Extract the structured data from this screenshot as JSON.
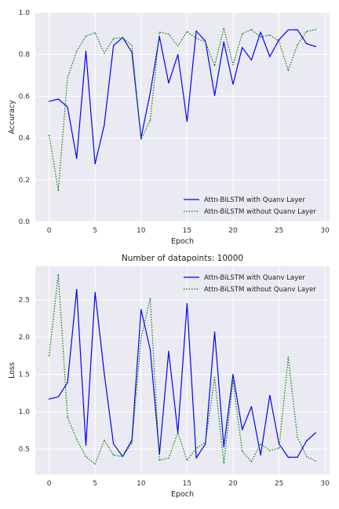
{
  "chart_data": [
    {
      "type": "line",
      "title": "",
      "xlabel": "Epoch",
      "ylabel": "Accuracy",
      "xlim": [
        -1.5,
        30.5
      ],
      "ylim": [
        0.0,
        1.0
      ],
      "xticks": [
        0,
        5,
        10,
        15,
        20,
        25,
        30
      ],
      "yticks": [
        0.0,
        0.2,
        0.4,
        0.6,
        0.8,
        1.0
      ],
      "grid": true,
      "legend_position": "lower-right",
      "x": [
        0,
        1,
        2,
        3,
        4,
        5,
        6,
        7,
        8,
        9,
        10,
        11,
        12,
        13,
        14,
        15,
        16,
        17,
        18,
        19,
        20,
        21,
        22,
        23,
        24,
        25,
        26,
        27,
        28,
        29
      ],
      "series": [
        {
          "name": "Attn-BiLSTM with Quanv Layer",
          "color": "#0000ff",
          "style": "solid",
          "values": [
            0.575,
            0.586,
            0.548,
            0.302,
            0.815,
            0.276,
            0.462,
            0.842,
            0.881,
            0.81,
            0.401,
            0.617,
            0.885,
            0.663,
            0.799,
            0.479,
            0.912,
            0.863,
            0.603,
            0.859,
            0.657,
            0.833,
            0.773,
            0.906,
            0.789,
            0.87,
            0.917,
            0.918,
            0.851,
            0.837
          ]
        },
        {
          "name": "Attn-BiLSTM without Quanv Layer",
          "color": "#008000",
          "style": "dotted",
          "values": [
            0.413,
            0.149,
            0.689,
            0.815,
            0.887,
            0.903,
            0.806,
            0.876,
            0.88,
            0.842,
            0.393,
            0.485,
            0.906,
            0.897,
            0.84,
            0.909,
            0.877,
            0.859,
            0.746,
            0.925,
            0.75,
            0.899,
            0.918,
            0.883,
            0.893,
            0.863,
            0.723,
            0.846,
            0.91,
            0.919
          ]
        }
      ]
    },
    {
      "type": "line",
      "title": "Number of datapoints: 10000",
      "xlabel": "Epoch",
      "ylabel": "Loss",
      "xlim": [
        -1.5,
        30.5
      ],
      "ylim": [
        0.16,
        2.95
      ],
      "xticks": [
        0,
        5,
        10,
        15,
        20,
        25,
        30
      ],
      "yticks": [
        0.5,
        1.0,
        1.5,
        2.0,
        2.5
      ],
      "grid": true,
      "legend_position": "upper-right",
      "x": [
        0,
        1,
        2,
        3,
        4,
        5,
        6,
        7,
        8,
        9,
        10,
        11,
        12,
        13,
        14,
        15,
        16,
        17,
        18,
        19,
        20,
        21,
        22,
        23,
        24,
        25,
        26,
        27,
        28,
        29
      ],
      "series": [
        {
          "name": "Attn-BiLSTM with Quanv Layer",
          "color": "#0000ff",
          "style": "solid",
          "values": [
            1.17,
            1.2,
            1.39,
            2.64,
            0.55,
            2.6,
            1.51,
            0.57,
            0.4,
            0.62,
            2.37,
            1.83,
            0.43,
            1.81,
            0.72,
            2.45,
            0.38,
            0.57,
            2.07,
            0.53,
            1.5,
            0.76,
            1.07,
            0.42,
            1.22,
            0.57,
            0.39,
            0.39,
            0.61,
            0.72
          ]
        },
        {
          "name": "Attn-BiLSTM without Quanv Layer",
          "color": "#008000",
          "style": "dotted",
          "values": [
            1.75,
            2.84,
            0.93,
            0.63,
            0.4,
            0.3,
            0.62,
            0.42,
            0.4,
            0.58,
            1.99,
            2.52,
            0.35,
            0.38,
            0.72,
            0.35,
            0.51,
            0.59,
            1.46,
            0.31,
            1.41,
            0.47,
            0.33,
            0.57,
            0.48,
            0.51,
            1.73,
            0.66,
            0.4,
            0.34
          ]
        }
      ]
    }
  ]
}
